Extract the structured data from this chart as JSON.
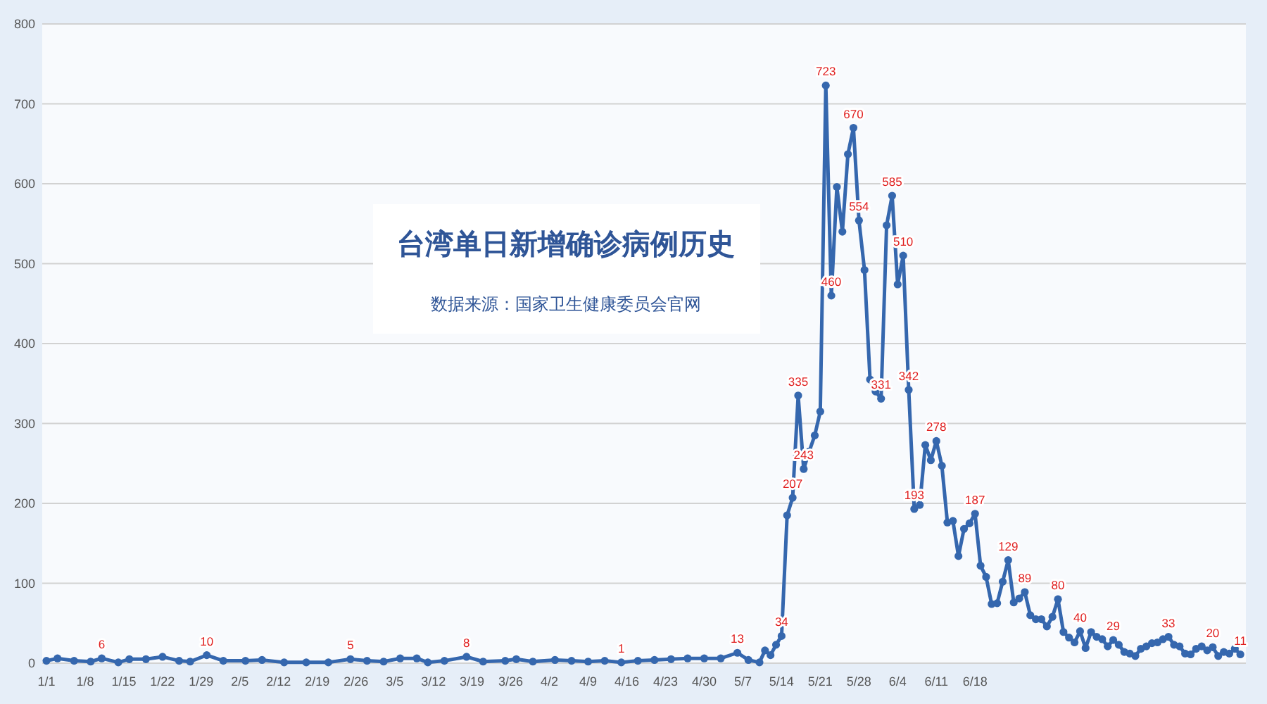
{
  "chart_data": {
    "type": "line",
    "title": "台湾单日新增确诊病例历史",
    "subtitle": "数据来源：国家卫生健康委员会官网",
    "x": [
      "--01-01",
      "--01-03",
      "--01-06",
      "--01-09",
      "--01-11",
      "--01-14",
      "--01-16",
      "--01-19",
      "--01-22",
      "--01-25",
      "--01-27",
      "--01-30",
      "--02-02",
      "--02-06",
      "--02-09",
      "--02-13",
      "--02-17",
      "--02-21",
      "--02-25",
      "--02-28",
      "--03-03",
      "--03-06",
      "--03-09",
      "--03-11",
      "--03-14",
      "--03-18",
      "--03-21",
      "--03-25",
      "--03-27",
      "--03-30",
      "--04-03",
      "--04-06",
      "--04-09",
      "--04-12",
      "--04-15",
      "--04-18",
      "--04-21",
      "--04-24",
      "--04-27",
      "--04-30",
      "--05-03",
      "--05-06",
      "--05-08",
      "--05-10",
      "--05-11",
      "--05-12",
      "--05-13",
      "--05-14",
      "--05-15",
      "--05-16",
      "--05-17",
      "--05-18",
      "--05-19",
      "--05-20",
      "--05-21",
      "--05-22",
      "--05-23",
      "--05-24",
      "--05-25",
      "--05-26",
      "--05-27",
      "--05-28",
      "--05-29",
      "--05-30",
      "--05-31",
      "--06-01",
      "--06-02",
      "--06-03",
      "--06-04",
      "--06-05",
      "--06-06",
      "--06-07",
      "--06-08",
      "--06-09",
      "--06-10",
      "--06-11",
      "--06-12",
      "--06-13",
      "--06-14",
      "--06-15",
      "--06-16",
      "--06-17",
      "--06-18",
      "--06-19",
      "--06-20",
      "--06-21",
      "--06-22",
      "--06-23",
      "--06-24",
      "--06-25",
      "--06-26",
      "--06-27",
      "--06-28",
      "--06-29",
      "--06-30",
      "--07-01",
      "--07-02",
      "--07-03",
      "--07-04",
      "--07-05",
      "--07-06",
      "--07-07",
      "--07-08",
      "--07-09",
      "--07-10",
      "--07-11",
      "--07-12",
      "--07-13",
      "--07-14",
      "--07-15",
      "--07-16",
      "--07-17",
      "--07-18",
      "--07-19",
      "--07-20",
      "--07-21",
      "--07-22",
      "--07-23",
      "--07-24",
      "--07-25",
      "--07-26",
      "--07-27",
      "--07-28",
      "--07-29",
      "--07-30",
      "--07-31",
      "--08-01",
      "--08-02",
      "--08-03",
      "--08-04",
      "--08-05"
    ],
    "series": [
      {
        "color": "#3567ae",
        "values": [
          3,
          6,
          3,
          2,
          6,
          1,
          5,
          5,
          8,
          3,
          2,
          10,
          3,
          3,
          4,
          1,
          1,
          1,
          5,
          3,
          2,
          6,
          6,
          1,
          3,
          8,
          2,
          3,
          5,
          2,
          4,
          3,
          2,
          3,
          1,
          3,
          4,
          5,
          6,
          6,
          6,
          13,
          4,
          1,
          16,
          10,
          23,
          34,
          185,
          207,
          335,
          243,
          265,
          285,
          315,
          723,
          460,
          596,
          540,
          637,
          670,
          554,
          492,
          355,
          340,
          331,
          548,
          585,
          474,
          510,
          342,
          193,
          198,
          273,
          254,
          278,
          247,
          176,
          178,
          134,
          168,
          175,
          187,
          122,
          108,
          74,
          75,
          102,
          129,
          76,
          81,
          89,
          60,
          55,
          55,
          46,
          58,
          80,
          39,
          32,
          26,
          40,
          19,
          39,
          33,
          30,
          21,
          29,
          23,
          14,
          12,
          9,
          18,
          21,
          25,
          26,
          30,
          33,
          23,
          21,
          12,
          11,
          18,
          21,
          16,
          20,
          9,
          14,
          12,
          18,
          11
        ],
        "value_labels": [
          null,
          null,
          null,
          null,
          "6",
          null,
          null,
          null,
          null,
          null,
          null,
          "10",
          null,
          null,
          null,
          null,
          null,
          null,
          "5",
          null,
          null,
          null,
          null,
          null,
          null,
          "8",
          null,
          null,
          null,
          null,
          null,
          null,
          null,
          null,
          "1",
          null,
          null,
          null,
          null,
          null,
          null,
          "13",
          null,
          null,
          null,
          null,
          null,
          "34",
          null,
          "207",
          "335",
          "243",
          null,
          null,
          null,
          "723",
          "460",
          null,
          null,
          null,
          "670",
          "554",
          null,
          null,
          null,
          "331",
          null,
          "585",
          null,
          "510",
          "342",
          "193",
          null,
          null,
          null,
          "278",
          null,
          null,
          null,
          null,
          null,
          null,
          "187",
          null,
          null,
          null,
          null,
          null,
          "129",
          null,
          null,
          "89",
          null,
          null,
          null,
          null,
          null,
          "80",
          null,
          null,
          null,
          "40",
          null,
          null,
          null,
          null,
          null,
          "29",
          null,
          null,
          null,
          null,
          null,
          null,
          null,
          null,
          null,
          "33",
          null,
          null,
          null,
          null,
          null,
          null,
          null,
          "20",
          null,
          null,
          null,
          null,
          "11"
        ]
      }
    ],
    "xlim": [
      "--01-01",
      "--08-06"
    ],
    "xticks": [
      {
        "value": "--01-01",
        "label": "1/1"
      },
      {
        "value": "--01-08",
        "label": "1/8"
      },
      {
        "value": "--01-15",
        "label": "1/15"
      },
      {
        "value": "--01-22",
        "label": "1/22"
      },
      {
        "value": "--01-29",
        "label": "1/29"
      },
      {
        "value": "--02-05",
        "label": "2/5"
      },
      {
        "value": "--02-12",
        "label": "2/12"
      },
      {
        "value": "--02-19",
        "label": "2/19"
      },
      {
        "value": "--02-26",
        "label": "2/26"
      },
      {
        "value": "--03-05",
        "label": "3/5"
      },
      {
        "value": "--03-12",
        "label": "3/12"
      },
      {
        "value": "--03-19",
        "label": "3/19"
      },
      {
        "value": "--03-26",
        "label": "3/26"
      },
      {
        "value": "--04-02",
        "label": "4/2"
      },
      {
        "value": "--04-09",
        "label": "4/9"
      },
      {
        "value": "--04-16",
        "label": "4/16"
      },
      {
        "value": "--04-23",
        "label": "4/23"
      },
      {
        "value": "--04-30",
        "label": "4/30"
      },
      {
        "value": "--05-07",
        "label": "5/7"
      },
      {
        "value": "--05-14",
        "label": "5/14"
      },
      {
        "value": "--05-21",
        "label": "5/21"
      },
      {
        "value": "--05-28",
        "label": "5/28"
      },
      {
        "value": "--06-04",
        "label": "6/4"
      },
      {
        "value": "--06-11",
        "label": "6/11"
      },
      {
        "value": "--06-18",
        "label": "6/18"
      }
    ],
    "ylim": [
      0,
      800
    ],
    "yticks": [
      0,
      100,
      200,
      300,
      400,
      500,
      600,
      700,
      800
    ],
    "grid": "y",
    "marker": "circle",
    "line_style": "solid"
  }
}
